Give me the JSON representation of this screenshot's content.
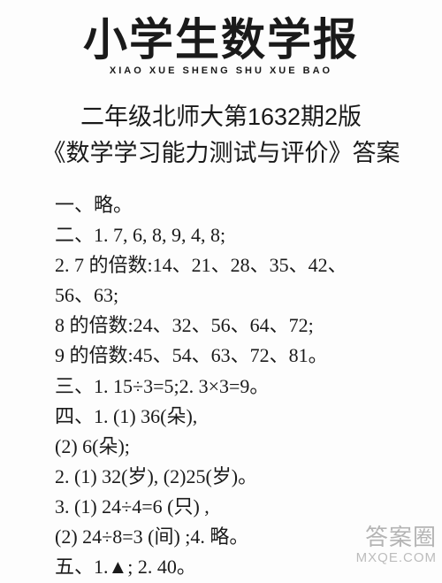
{
  "header": {
    "masthead": "小学生数学报",
    "pinyin": "XIAO XUE SHENG SHU XUE BAO"
  },
  "title": {
    "line1": "二年级北师大第1632期2版",
    "line2": "《数学学习能力测试与评价》答案"
  },
  "content": {
    "lines": [
      "一、略。",
      "二、1. 7, 6, 8, 9, 4, 8;",
      "2. 7 的倍数:14、21、28、35、42、",
      "56、63;",
      "8 的倍数:24、32、56、64、72;",
      "9 的倍数:45、54、63、72、81。",
      "三、1. 15÷3=5;2. 3×3=9。",
      "四、1. (1) 36(朵),",
      "(2) 6(朵);",
      "2. (1) 32(岁), (2)25(岁)。",
      "3. (1) 24÷4=6 (只) ,",
      "(2) 24÷8=3 (间) ;4. 略。",
      "五、1.▲; 2. 40。"
    ]
  },
  "watermark": {
    "top": "答案圈",
    "bottom": "MXQE.COM"
  },
  "colors": {
    "background": "#fdfdfd",
    "text": "#1a1a1a",
    "watermark": "#7a7a7a"
  }
}
